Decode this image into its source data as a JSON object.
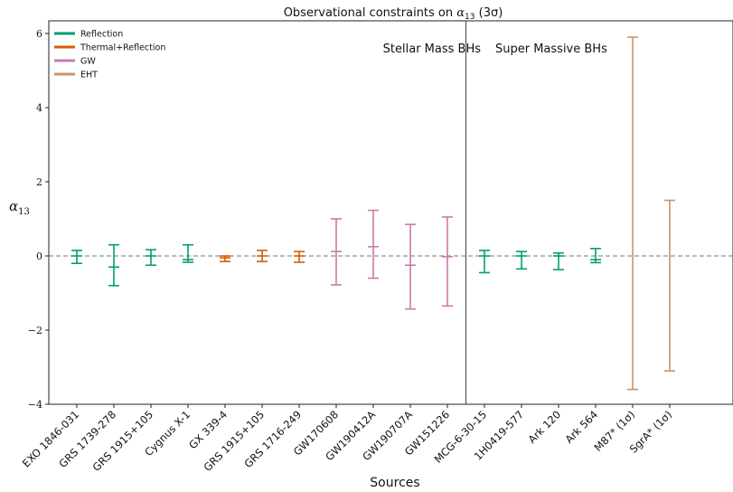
{
  "chart_data": {
    "type": "errorbar",
    "title": "Observational constraints on α13 (3σ)",
    "title_parts": {
      "prefix": "Observational constraints on ",
      "symbol": "α",
      "subscript": "13",
      "suffix": " (3σ)"
    },
    "xlabel": "Sources",
    "ylabel": {
      "symbol": "α",
      "subscript": "13"
    },
    "ylim": [
      -4.1,
      6.4
    ],
    "yticks": [
      -4,
      -2,
      0,
      2,
      4,
      6
    ],
    "ytick_labels": [
      "−4",
      "−2",
      "0",
      "2",
      "4",
      "6"
    ],
    "reference_line": {
      "y": 0,
      "style": "dashed"
    },
    "regions": [
      {
        "label": "Stellar Mass BHs",
        "side": "left"
      },
      {
        "label": "Super Massive BHs",
        "side": "right"
      }
    ],
    "legend": {
      "placement": "top-left",
      "entries": [
        {
          "label": "Reflection",
          "color": "#009e73"
        },
        {
          "label": "Thermal+Reflection",
          "color": "#d55e00"
        },
        {
          "label": "GW",
          "color": "#cc79a7"
        },
        {
          "label": "EHT",
          "color": "#c8936a"
        }
      ]
    },
    "categories": [
      "EXO 1846-031",
      "GRS 1739-278",
      "GRS 1915+105",
      "Cygnus X-1",
      "GX 339-4",
      "GRS 1915+105",
      "GRS 1716-249",
      "GW170608",
      "GW190412A",
      "GW190707A",
      "GW151226",
      "MCG-6-30-15",
      "1H0419-577",
      "Ark 120",
      "Ark 564",
      "M87* (1σ)",
      "SgrA* (1σ)"
    ],
    "points": [
      {
        "source": "EXO 1846-031",
        "group": "Reflection",
        "center": 0.0,
        "lower": -0.2,
        "upper": 0.15
      },
      {
        "source": "GRS 1739-278",
        "group": "Reflection",
        "center": -0.3,
        "lower": -0.8,
        "upper": 0.3
      },
      {
        "source": "GRS 1915+105",
        "group": "Reflection",
        "center": 0.0,
        "lower": -0.25,
        "upper": 0.17
      },
      {
        "source": "Cygnus X-1",
        "group": "Reflection",
        "center": -0.1,
        "lower": -0.17,
        "upper": 0.3
      },
      {
        "source": "GX 339-4",
        "group": "Thermal+Reflection",
        "center": -0.05,
        "lower": -0.15,
        "upper": 0.0
      },
      {
        "source": "GRS 1915+105",
        "group": "Thermal+Reflection",
        "center": 0.0,
        "lower": -0.15,
        "upper": 0.15
      },
      {
        "source": "GRS 1716-249",
        "group": "Thermal+Reflection",
        "center": 0.0,
        "lower": -0.17,
        "upper": 0.12
      },
      {
        "source": "GW170608",
        "group": "GW",
        "center": 0.12,
        "lower": -0.78,
        "upper": 1.0
      },
      {
        "source": "GW190412A",
        "group": "GW",
        "center": 0.25,
        "lower": -0.6,
        "upper": 1.23
      },
      {
        "source": "GW190707A",
        "group": "GW",
        "center": -0.25,
        "lower": -1.43,
        "upper": 0.85
      },
      {
        "source": "GW151226",
        "group": "GW",
        "center": -0.02,
        "lower": -1.35,
        "upper": 1.05
      },
      {
        "source": "MCG-6-30-15",
        "group": "Reflection",
        "center": 0.0,
        "lower": -0.45,
        "upper": 0.15
      },
      {
        "source": "1H0419-577",
        "group": "Reflection",
        "center": 0.0,
        "lower": -0.35,
        "upper": 0.12
      },
      {
        "source": "Ark 120",
        "group": "Reflection",
        "center": 0.0,
        "lower": -0.37,
        "upper": 0.08
      },
      {
        "source": "Ark 564",
        "group": "Reflection",
        "center": -0.1,
        "lower": -0.18,
        "upper": 0.2
      },
      {
        "source": "M87* (1σ)",
        "group": "EHT",
        "center": null,
        "lower": -3.6,
        "upper": 5.9
      },
      {
        "source": "SgrA* (1σ)",
        "group": "EHT",
        "center": null,
        "lower": -3.1,
        "upper": 1.5
      }
    ],
    "region_divider_after_index": 10,
    "grid": false
  }
}
